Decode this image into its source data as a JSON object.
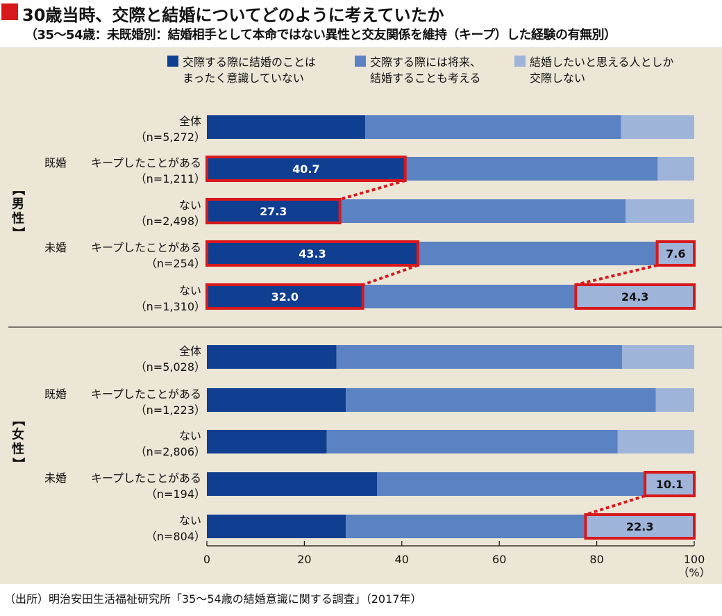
{
  "title": "30歳当時、交際と結婚についてどのように考えていたか",
  "subtitle": "（35～54歳：未既婚別：結婚相手として本命ではない異性と交友関係を維持（キープ）した経験の有無別）",
  "source": "（出所）明治安田生活福祉研究所「35～54歳の結婚意識に関する調査」（2017年）",
  "colors": {
    "series1": "#103e91",
    "series2": "#5b82c2",
    "series3": "#9fb4d9",
    "highlight": "#d7191c",
    "panel": "#ece6d6"
  },
  "chart_data": {
    "type": "bar",
    "orientation": "horizontal",
    "stacked": true,
    "xlim": [
      0,
      100
    ],
    "x_ticks": [
      "0",
      "20",
      "40",
      "60",
      "80",
      "100"
    ],
    "unit_label": "（%）",
    "groups": [
      {
        "name_lines": [
          "【",
          "男",
          "性",
          "】"
        ],
        "label": "【男性】"
      },
      {
        "name_lines": [
          "【",
          "女",
          "性",
          "】"
        ],
        "label": "【女性】"
      }
    ],
    "legend": [
      {
        "key": "s1",
        "lines": [
          "交際する際に結婚のことは",
          "まったく意識していない"
        ]
      },
      {
        "key": "s2",
        "lines": [
          "交際する際には将来、",
          "結婚することも考える"
        ]
      },
      {
        "key": "s3",
        "lines": [
          "結婚したいと思える人としか",
          "交際しない"
        ]
      }
    ],
    "categories": [
      {
        "group": 0,
        "status": "",
        "line1": "全体",
        "n": "（n=5,272）",
        "s1": 32.5,
        "s2": 52.5,
        "s3": 15.0,
        "label_s1": "",
        "label_s3": ""
      },
      {
        "group": 0,
        "status": "既婚",
        "line1": "キープしたことがある",
        "n": "（n=1,211）",
        "s1": 40.7,
        "s2": 51.8,
        "s3": 7.5,
        "label_s1": "40.7",
        "label_s3": ""
      },
      {
        "group": 0,
        "status": "",
        "line1": "ない",
        "n": "（n=2,498）",
        "s1": 27.3,
        "s2": 58.6,
        "s3": 14.1,
        "label_s1": "27.3",
        "label_s3": ""
      },
      {
        "group": 0,
        "status": "未婚",
        "line1": "キープしたことがある",
        "n": "（n=254）",
        "s1": 43.3,
        "s2": 49.1,
        "s3": 7.6,
        "label_s1": "43.3",
        "label_s3": "7.6"
      },
      {
        "group": 0,
        "status": "",
        "line1": "ない",
        "n": "（n=1,310）",
        "s1": 32.0,
        "s2": 43.7,
        "s3": 24.3,
        "label_s1": "32.0",
        "label_s3": "24.3"
      },
      {
        "group": 1,
        "status": "",
        "line1": "全体",
        "n": "（n=5,028）",
        "s1": 26.6,
        "s2": 58.6,
        "s3": 14.8,
        "label_s1": "",
        "label_s3": ""
      },
      {
        "group": 1,
        "status": "既婚",
        "line1": "キープしたことがある",
        "n": "（n=1,223）",
        "s1": 28.5,
        "s2": 63.6,
        "s3": 7.9,
        "label_s1": "",
        "label_s3": ""
      },
      {
        "group": 1,
        "status": "",
        "line1": "ない",
        "n": "（n=2,806）",
        "s1": 24.6,
        "s2": 59.7,
        "s3": 15.7,
        "label_s1": "",
        "label_s3": ""
      },
      {
        "group": 1,
        "status": "未婚",
        "line1": "キープしたことがある",
        "n": "（n=194）",
        "s1": 34.9,
        "s2": 55.0,
        "s3": 10.1,
        "label_s1": "",
        "label_s3": "10.1"
      },
      {
        "group": 1,
        "status": "",
        "line1": "ない",
        "n": "（n=804）",
        "s1": 28.5,
        "s2": 49.2,
        "s3": 22.3,
        "label_s1": "",
        "label_s3": "22.3"
      }
    ],
    "highlight_links": [
      {
        "from_row": 1,
        "from_key": "s1",
        "to_row": 2,
        "to_key": "s1"
      },
      {
        "from_row": 3,
        "from_key": "s1",
        "to_row": 4,
        "to_key": "s1"
      },
      {
        "from_row": 3,
        "from_key": "s3",
        "to_row": 4,
        "to_key": "s3"
      },
      {
        "from_row": 8,
        "from_key": "s3",
        "to_row": 9,
        "to_key": "s3"
      }
    ],
    "grid": false,
    "legend_position": "top"
  }
}
